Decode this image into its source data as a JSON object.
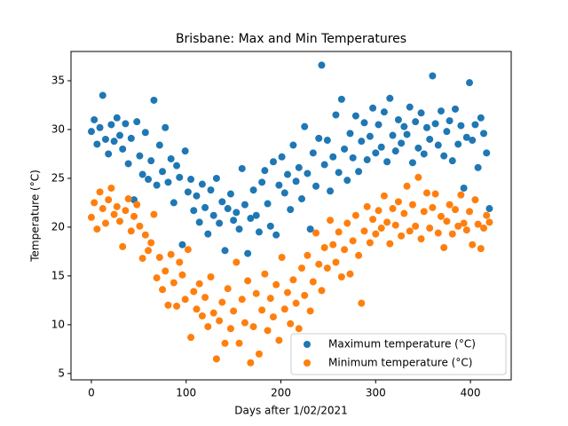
{
  "chart_data": {
    "type": "scatter",
    "title": "Brisbane: Max and Min Temperatures",
    "x_label": "Days after 1/02/2021",
    "y_label": "Temperature (°C)",
    "x": [
      0,
      3,
      6,
      9,
      12,
      15,
      18,
      21,
      24,
      27,
      30,
      33,
      36,
      39,
      42,
      45,
      48,
      51,
      54,
      57,
      60,
      63,
      66,
      69,
      72,
      75,
      78,
      81,
      84,
      87,
      90,
      93,
      96,
      99,
      102,
      105,
      108,
      111,
      114,
      117,
      120,
      123,
      126,
      129,
      132,
      135,
      138,
      141,
      144,
      147,
      150,
      153,
      156,
      159,
      162,
      165,
      168,
      171,
      174,
      177,
      180,
      183,
      186,
      189,
      192,
      195,
      198,
      201,
      204,
      207,
      210,
      213,
      216,
      219,
      222,
      225,
      228,
      231,
      234,
      237,
      240,
      243,
      246,
      249,
      252,
      255,
      258,
      261,
      264,
      267,
      270,
      273,
      276,
      279,
      282,
      285,
      288,
      291,
      294,
      297,
      300,
      303,
      306,
      309,
      312,
      315,
      318,
      321,
      324,
      327,
      330,
      333,
      336,
      339,
      342,
      345,
      348,
      351,
      354,
      357,
      360,
      363,
      366,
      369,
      372,
      375,
      378,
      381,
      384,
      387,
      390,
      393,
      396,
      399,
      402,
      405,
      408,
      411,
      414,
      417,
      420
    ],
    "series": [
      {
        "name": "Maximum temperature (°C)",
        "color": "#1f77b4",
        "values": [
          29.8,
          31,
          28.5,
          30.2,
          33.5,
          29,
          27.5,
          30.5,
          28.8,
          31.2,
          29.4,
          28,
          30.6,
          26.5,
          29.1,
          22.8,
          30.8,
          27.3,
          25.4,
          29.7,
          24.9,
          26.8,
          33,
          24.3,
          28.4,
          25.7,
          30.2,
          24.6,
          27,
          22.5,
          26.3,
          25.1,
          18.2,
          27.8,
          23.6,
          24.9,
          21.7,
          23.2,
          20.5,
          24.4,
          22,
          19.3,
          23.8,
          21.2,
          25,
          20.4,
          22.6,
          17.6,
          21.9,
          23.4,
          20.7,
          21.5,
          19.8,
          26,
          22.3,
          17.3,
          20.9,
          23.8,
          21.2,
          19.5,
          24.6,
          25.8,
          22.4,
          20.1,
          26.7,
          19.2,
          24.3,
          27.2,
          23.5,
          25.4,
          21.8,
          28.4,
          24.7,
          26.1,
          22.9,
          30.3,
          25.5,
          19.8,
          27.6,
          24.2,
          29.1,
          36.6,
          26.4,
          28.9,
          23.7,
          27.2,
          31.5,
          25.6,
          33.1,
          28,
          24.8,
          29.6,
          27.1,
          31.4,
          25.7,
          28.8,
          30.7,
          26.9,
          29.3,
          32.2,
          27.6,
          30.5,
          28.2,
          31.8,
          26.7,
          33.2,
          29.4,
          27.8,
          31,
          28.6,
          30.3,
          29.5,
          32.3,
          26.6,
          30.8,
          28.1,
          31.7,
          27.5,
          30.2,
          29,
          35.5,
          30.6,
          28.4,
          31.9,
          27.3,
          29.8,
          30.9,
          26.8,
          32.1,
          28.5,
          30.4,
          24,
          29.2,
          34.8,
          28.9,
          30.5,
          26.1,
          31.2,
          29.6,
          27.6,
          21.9
        ]
      },
      {
        "name": "Minimum temperature (°C)",
        "color": "#ff7f0e",
        "values": [
          21,
          22.5,
          19.8,
          23.6,
          21.9,
          20.4,
          22.8,
          24,
          21.3,
          22.1,
          20.6,
          18,
          21.7,
          22.9,
          19.6,
          21.1,
          22.3,
          20.1,
          16.8,
          19.2,
          17.6,
          18.4,
          21.3,
          14.8,
          16.9,
          13.6,
          15.5,
          12,
          17.2,
          14.3,
          11.9,
          16.4,
          15.1,
          12.6,
          17.7,
          8.7,
          13.4,
          11.6,
          14.2,
          10.9,
          12.8,
          9.8,
          14.9,
          11.2,
          6.5,
          10.4,
          12.3,
          8.1,
          13.7,
          9.6,
          11.4,
          16.4,
          8.1,
          12.6,
          10.2,
          14.5,
          6.1,
          9.8,
          13.2,
          7,
          11.5,
          15.2,
          9.4,
          12.7,
          10.8,
          14.1,
          8.4,
          16.9,
          11.6,
          13.3,
          10.1,
          14.6,
          12.2,
          9.6,
          15.8,
          13,
          17.1,
          11.4,
          14.4,
          19.4,
          16.2,
          13.5,
          17.9,
          15.8,
          20.7,
          18.2,
          16.4,
          19.5,
          14.9,
          17.7,
          20.4,
          15.2,
          18.6,
          21.2,
          17.1,
          12.2,
          19.6,
          22.1,
          18.4,
          20.8,
          19.3,
          21.7,
          19.9,
          23.2,
          20.5,
          18.3,
          21.9,
          20.2,
          22.6,
          19.1,
          21.4,
          24.2,
          19.6,
          22.3,
          20.1,
          25.1,
          18.8,
          21.6,
          23.5,
          19.9,
          22,
          23.4,
          19.4,
          21.1,
          17.9,
          20.6,
          22.3,
          19.3,
          21.8,
          20.1,
          23.3,
          20.4,
          19.7,
          21.6,
          18.2,
          22.8,
          20.3,
          17.8,
          19.9,
          21.2,
          20.5
        ]
      }
    ],
    "xlim": [
      -21.5,
      443
    ],
    "ylim": [
      4.35,
      38
    ],
    "xticks": [
      0,
      100,
      200,
      300,
      400
    ],
    "yticks": [
      5,
      10,
      15,
      20,
      25,
      30,
      35
    ],
    "legend": "lower right"
  }
}
